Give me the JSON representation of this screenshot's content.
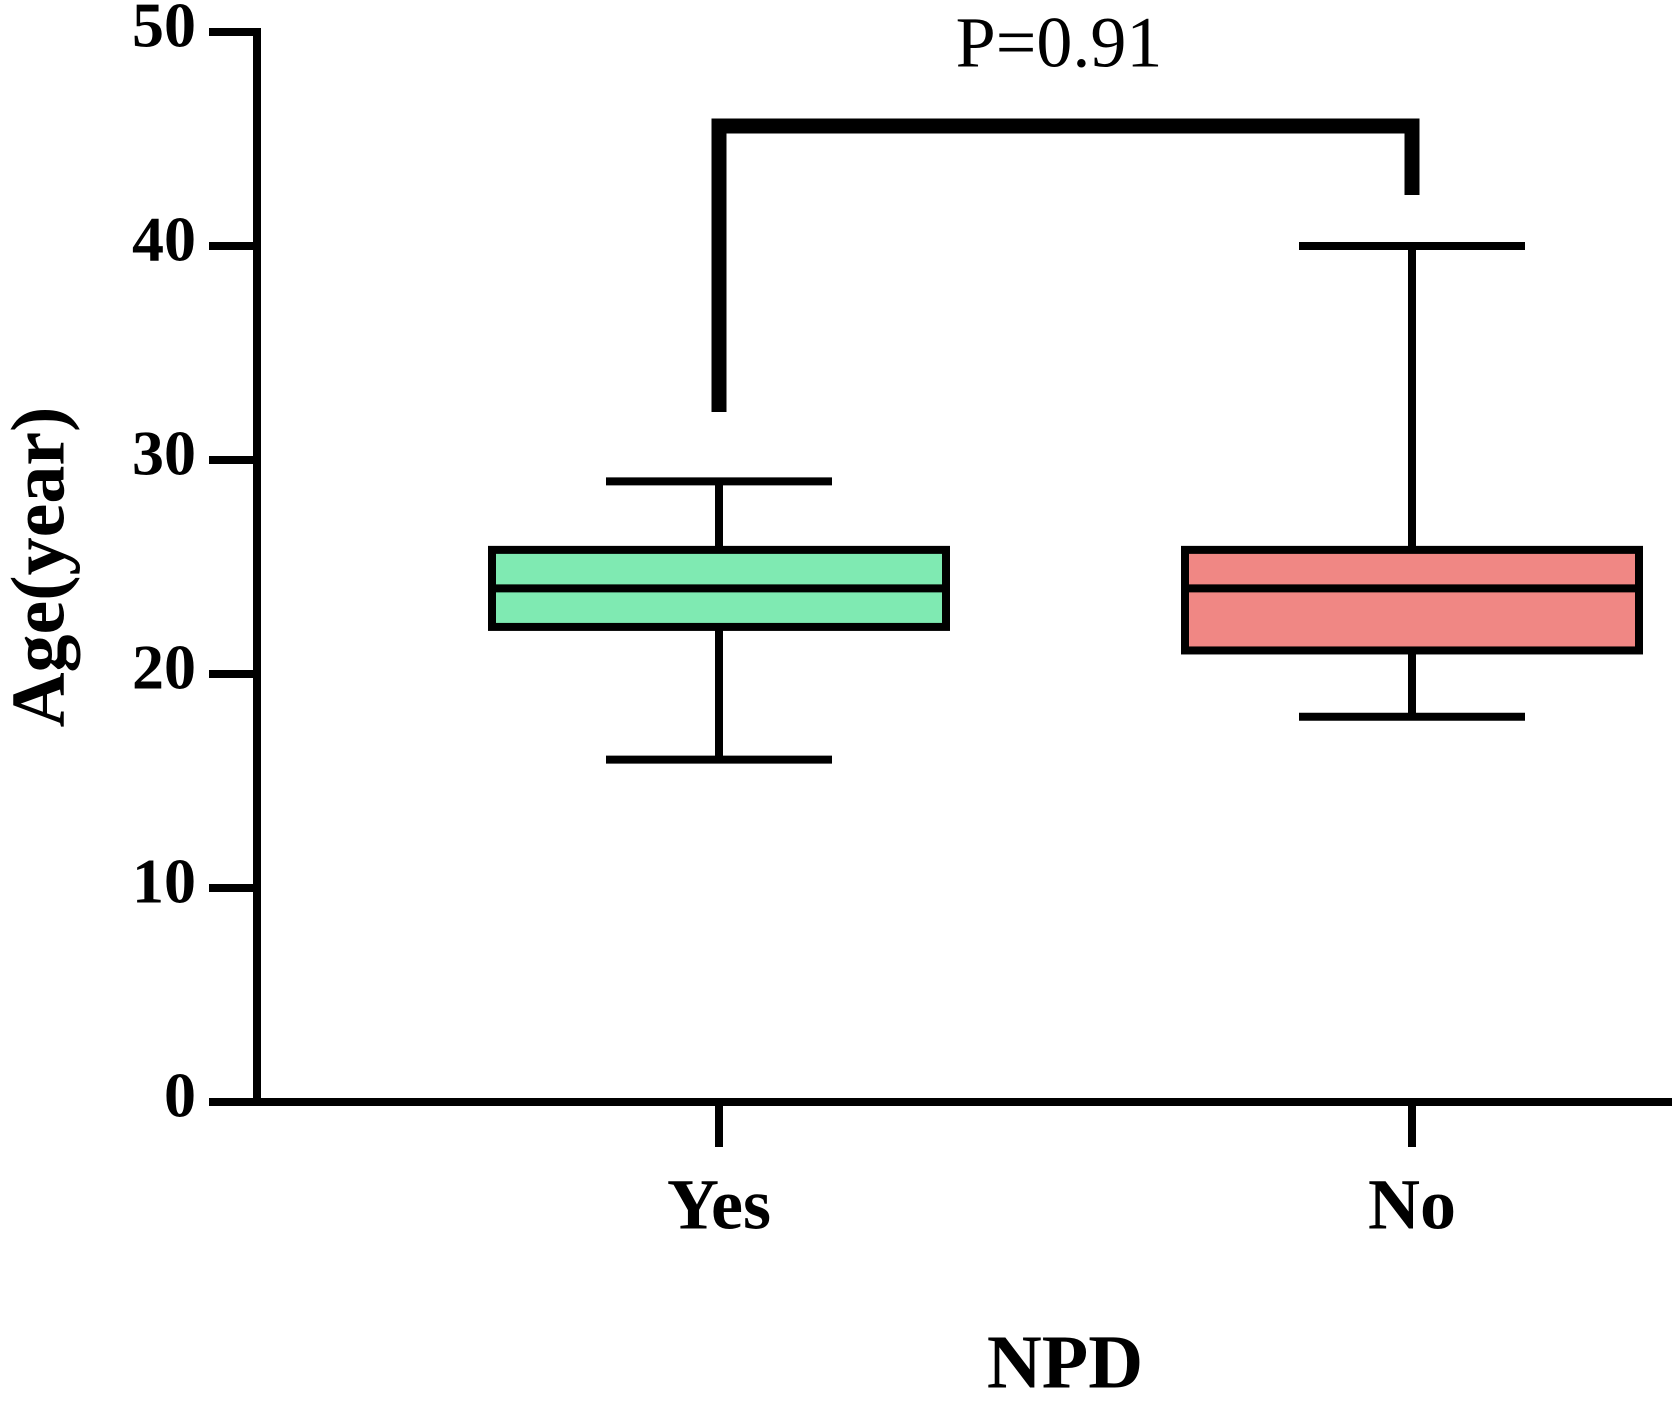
{
  "chart_data": {
    "type": "box",
    "annotation": "P=0.91",
    "x_label": "NPD",
    "y_label": "Age(year)",
    "categories": [
      "Yes",
      "No"
    ],
    "boxes": [
      {
        "min": 16,
        "q1": 22.2,
        "median": 24,
        "q3": 25.8,
        "max": 29,
        "color": "#7feab2"
      },
      {
        "min": 18,
        "q1": 21.1,
        "median": 24,
        "q3": 25.8,
        "max": 40,
        "color": "#f08784"
      }
    ],
    "ylim": [
      0,
      50
    ],
    "yticks": [
      0,
      10,
      20,
      30,
      40,
      50
    ]
  }
}
